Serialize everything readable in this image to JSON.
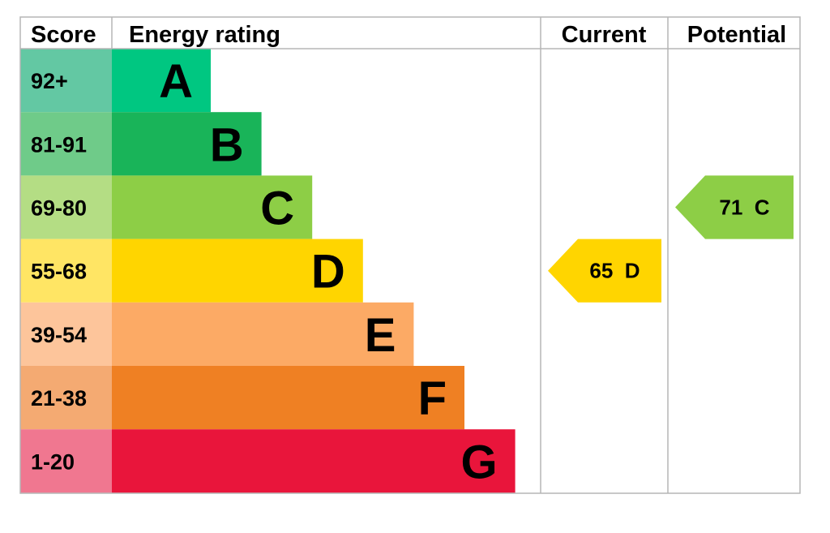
{
  "chart_data": {
    "type": "bar",
    "headers": {
      "score": "Score",
      "rating": "Energy rating",
      "current": "Current",
      "potential": "Potential"
    },
    "bands": [
      {
        "range": "92+",
        "letter": "A",
        "bar_color": "#00c781",
        "score_color": "#63c8a3"
      },
      {
        "range": "81-91",
        "letter": "B",
        "bar_color": "#19b459",
        "score_color": "#6fcb89"
      },
      {
        "range": "69-80",
        "letter": "C",
        "bar_color": "#8dce46",
        "score_color": "#b4dd84"
      },
      {
        "range": "55-68",
        "letter": "D",
        "bar_color": "#ffd500",
        "score_color": "#ffe564"
      },
      {
        "range": "39-54",
        "letter": "E",
        "bar_color": "#fcaa65",
        "score_color": "#fdc59b"
      },
      {
        "range": "21-38",
        "letter": "F",
        "bar_color": "#ef8023",
        "score_color": "#f4aa72"
      },
      {
        "range": "1-20",
        "letter": "G",
        "bar_color": "#e9153b",
        "score_color": "#f07790"
      }
    ],
    "current": {
      "value": 65,
      "letter": "D",
      "label": "65  D",
      "color": "#ffd500"
    },
    "potential": {
      "value": 71,
      "letter": "C",
      "label": "71  C",
      "color": "#8dce46"
    }
  }
}
